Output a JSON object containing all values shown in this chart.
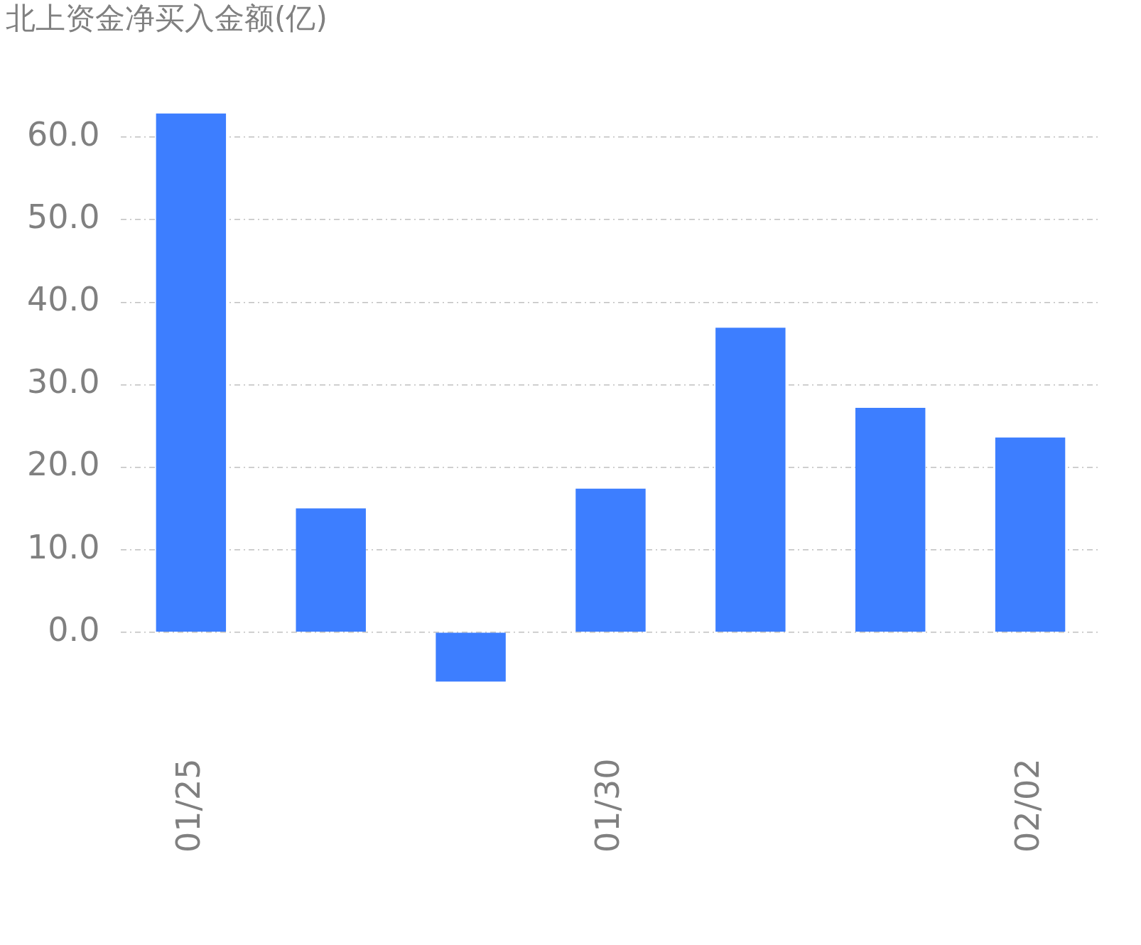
{
  "chart_data": {
    "type": "bar",
    "title": "北上资金净买入金额(亿)",
    "categories": [
      "01/25",
      null,
      null,
      "01/30",
      null,
      null,
      "02/02"
    ],
    "values": [
      62.9,
      15.0,
      -6.0,
      17.4,
      36.9,
      27.2,
      23.6
    ],
    "color": "#3d7eff",
    "ylim": [
      -6.0,
      62.9
    ],
    "yticks": [
      {
        "value": 0,
        "label": "0.0"
      },
      {
        "value": 10,
        "label": "10.0"
      },
      {
        "value": 20,
        "label": "20.0"
      },
      {
        "value": 30,
        "label": "30.0"
      },
      {
        "value": 40,
        "label": "40.0"
      },
      {
        "value": 50,
        "label": "50.0"
      },
      {
        "value": 60,
        "label": "60.0"
      }
    ],
    "grid": "y"
  }
}
